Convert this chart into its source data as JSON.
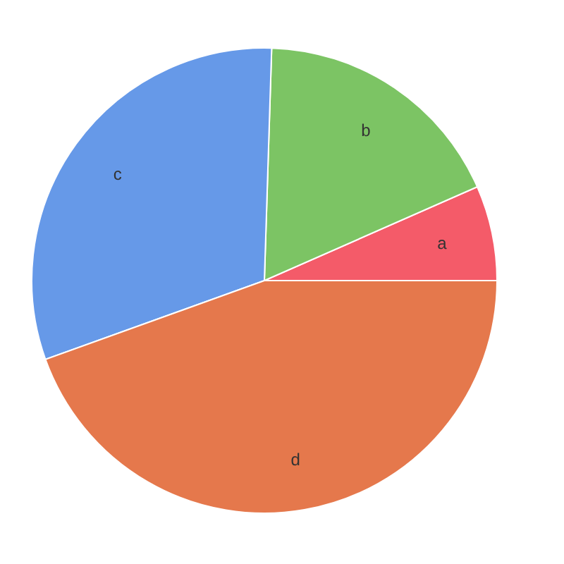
{
  "chart_data": {
    "type": "pie",
    "categories": [
      "a",
      "b",
      "c",
      "d"
    ],
    "values": [
      6.6,
      17.9,
      31.0,
      44.5
    ],
    "colors": [
      "#f45b69",
      "#7cc464",
      "#6699e8",
      "#e5784c"
    ]
  }
}
